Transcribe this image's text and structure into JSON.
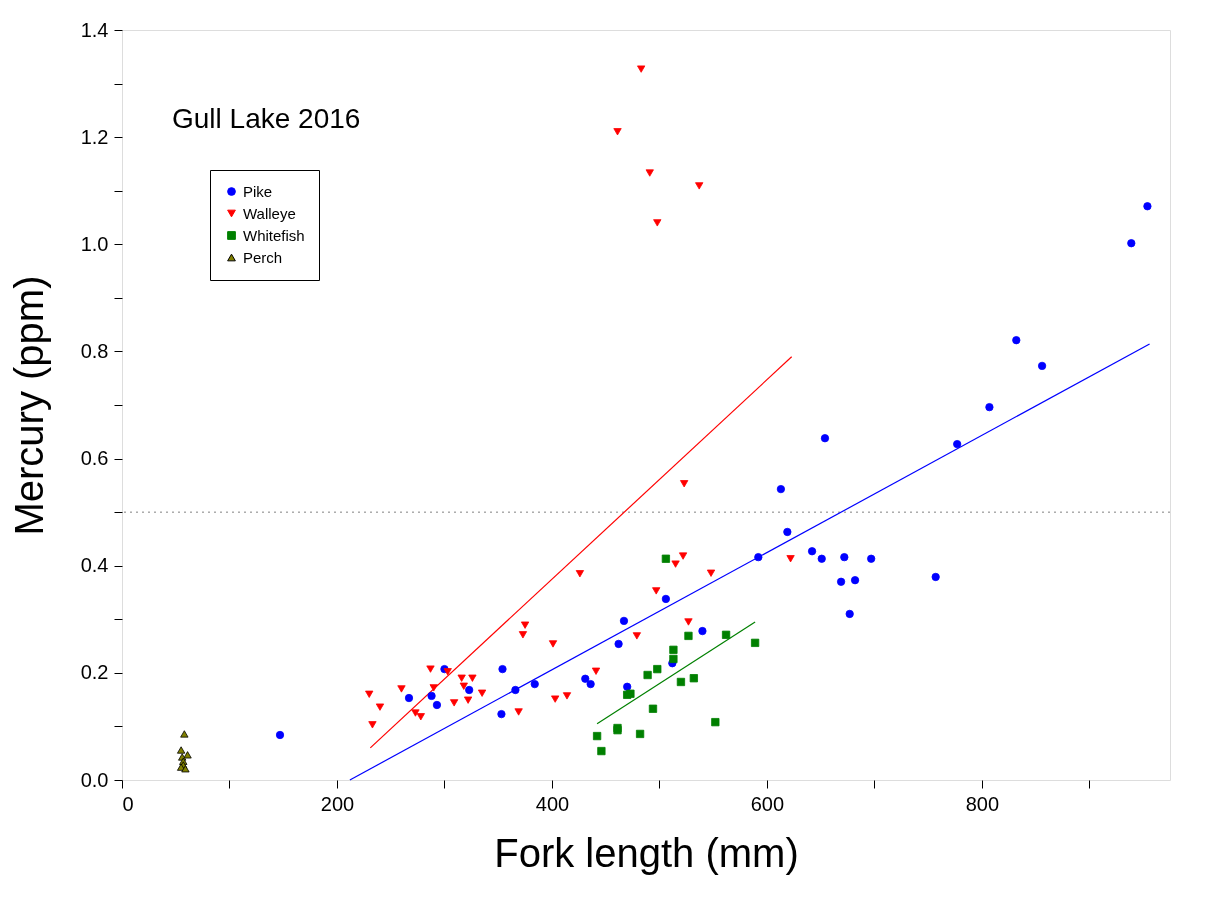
{
  "chart_data": {
    "type": "scatter",
    "xlabel": "Fork length  (mm)",
    "ylabel": "Mercury  (ppm)",
    "annotations": [
      "Gull Lake 2016"
    ],
    "xlim": [
      0,
      975
    ],
    "ylim": [
      0,
      1.4
    ],
    "xticks": [
      0,
      {
        "value": 100,
        "label": null
      },
      200,
      {
        "value": 300,
        "label": null
      },
      400,
      {
        "value": 500,
        "label": null
      },
      600,
      {
        "value": 700,
        "label": null
      },
      800,
      {
        "value": 900,
        "label": null
      }
    ],
    "yticks": [
      {
        "value": 0,
        "label": "0.0"
      },
      {
        "value": 0.1,
        "label": null
      },
      0.2,
      {
        "value": 0.3,
        "label": null
      },
      0.4,
      {
        "value": 0.5,
        "label": null
      },
      0.6,
      {
        "value": 0.7,
        "label": null
      },
      0.8,
      {
        "value": 0.9,
        "label": null
      },
      {
        "value": 1.0,
        "label": "1.0"
      },
      {
        "value": 1.1,
        "label": null
      },
      1.2,
      {
        "value": 1.3,
        "label": null
      },
      1.4
    ],
    "grid": false,
    "legend": "top left",
    "ref_lines": [
      {
        "axis": "y",
        "value": 0.5,
        "color": "#808080",
        "line_style": "dotted"
      }
    ],
    "series": [
      {
        "name": "Pike",
        "color": "#0000ff",
        "marker": "circle",
        "x": [
          147,
          267,
          288,
          293,
          300,
          323,
          354,
          353,
          366,
          384,
          431,
          436,
          462,
          467,
          470,
          506,
          512,
          540,
          592,
          613,
          619,
          642,
          651,
          654,
          672,
          669,
          677,
          682,
          697,
          757,
          777,
          807,
          832,
          856,
          939,
          954
        ],
        "values": [
          0.084,
          0.153,
          0.157,
          0.14,
          0.207,
          0.168,
          0.207,
          0.123,
          0.168,
          0.179,
          0.189,
          0.179,
          0.254,
          0.297,
          0.174,
          0.338,
          0.218,
          0.278,
          0.416,
          0.543,
          0.463,
          0.427,
          0.413,
          0.638,
          0.416,
          0.37,
          0.31,
          0.373,
          0.413,
          0.379,
          0.627,
          0.696,
          0.821,
          0.773,
          1.002,
          1.071
        ]
      },
      {
        "name": "Walleye",
        "color": "#ff0000",
        "marker": "triangle-down",
        "x": [
          230,
          233,
          240,
          260,
          273,
          278,
          287,
          290,
          303,
          309,
          316,
          318,
          322,
          326,
          335,
          369,
          373,
          375,
          401,
          403,
          414,
          426,
          441,
          461,
          479,
          483,
          491,
          498,
          497,
          515,
          522,
          523,
          527,
          537,
          548,
          622
        ],
        "values": [
          0.16,
          0.103,
          0.136,
          0.17,
          0.125,
          0.118,
          0.207,
          0.172,
          0.202,
          0.144,
          0.19,
          0.175,
          0.149,
          0.19,
          0.162,
          0.127,
          0.271,
          0.289,
          0.254,
          0.151,
          0.157,
          0.385,
          0.203,
          1.21,
          0.269,
          1.327,
          1.133,
          1.04,
          0.353,
          0.403,
          0.418,
          0.553,
          0.295,
          1.109,
          0.386,
          0.413
        ]
      },
      {
        "name": "Whitefish",
        "color": "#008000",
        "marker": "square",
        "x": [
          506,
          527,
          513,
          513,
          562,
          589,
          498,
          489,
          520,
          532,
          470,
          473,
          494,
          442,
          446,
          461,
          461,
          482,
          552
        ],
        "values": [
          0.413,
          0.269,
          0.243,
          0.226,
          0.271,
          0.256,
          0.207,
          0.196,
          0.183,
          0.19,
          0.159,
          0.161,
          0.133,
          0.082,
          0.054,
          0.097,
          0.093,
          0.086,
          0.108
        ]
      },
      {
        "name": "Perch",
        "color": "#808000",
        "marker": "triangle",
        "x": [
          58,
          55,
          61,
          56,
          57,
          57,
          55,
          59
        ],
        "values": [
          0.086,
          0.056,
          0.047,
          0.043,
          0.035,
          0.028,
          0.024,
          0.021
        ]
      },
      {
        "type": "line",
        "color": "#ff0000",
        "x": [
          231,
          623
        ],
        "values": [
          0.06,
          0.79
        ]
      },
      {
        "type": "line",
        "color": "#0000ff",
        "x": [
          212,
          956
        ],
        "values": [
          0.0,
          0.814
        ]
      },
      {
        "type": "line",
        "color": "#008000",
        "x": [
          442,
          589
        ],
        "values": [
          0.105,
          0.295
        ]
      }
    ]
  }
}
